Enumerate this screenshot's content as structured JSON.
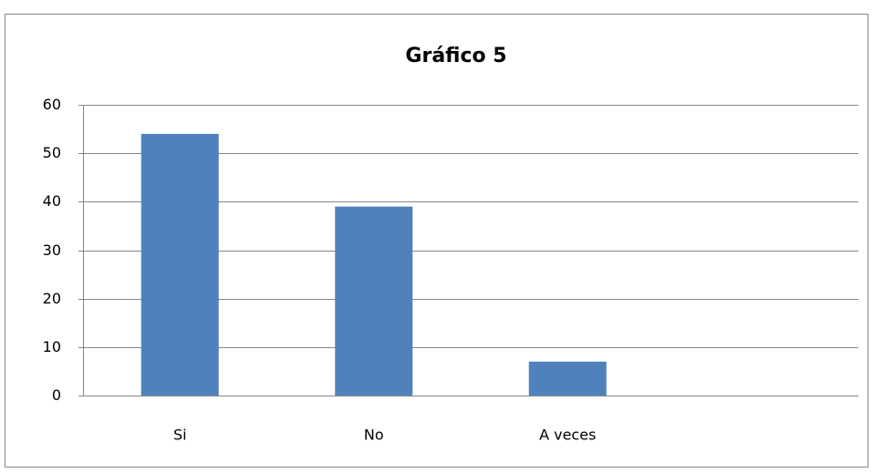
{
  "chart_data": {
    "type": "bar",
    "title": "Gráfico 5",
    "categories": [
      "Si",
      "No",
      "A veces",
      null
    ],
    "values": [
      54,
      39,
      7,
      null
    ],
    "color": "#4f81bd",
    "ylim": [
      0,
      60
    ],
    "yticks": [
      0,
      10,
      20,
      30,
      40,
      50,
      60
    ],
    "grid": true
  }
}
